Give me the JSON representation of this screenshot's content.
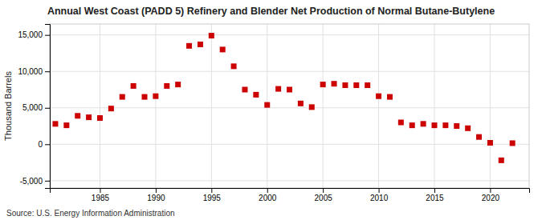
{
  "chart_data": {
    "type": "scatter",
    "title": "Annual West Coast (PADD 5) Refinery and Blender Net Production of Normal Butane-Butylene",
    "ylabel": "Thousand Barrels",
    "annotations": [
      "Source: U.S. Energy Information Administration"
    ],
    "color": "#cc0000",
    "marker": "square",
    "grid": true,
    "xlim": [
      1980.5,
      2023.5
    ],
    "ylim": [
      -6000,
      16500
    ],
    "xticks": [
      1985,
      1990,
      1995,
      2000,
      2005,
      2010,
      2015,
      2020
    ],
    "yticks": [
      {
        "value": -5000,
        "label": "-5,000"
      },
      0,
      {
        "value": 5000,
        "label": "5,000"
      },
      {
        "value": 10000,
        "label": "10,000"
      },
      {
        "value": 15000,
        "label": "15,000"
      }
    ],
    "x": [
      1981,
      1982,
      1983,
      1984,
      1985,
      1986,
      1987,
      1988,
      1989,
      1990,
      1991,
      1992,
      1993,
      1994,
      1995,
      1996,
      1997,
      1998,
      1999,
      2000,
      2001,
      2002,
      2003,
      2004,
      2005,
      2006,
      2007,
      2008,
      2009,
      2010,
      2011,
      2012,
      2013,
      2014,
      2015,
      2016,
      2017,
      2018,
      2019,
      2020,
      2021,
      2022
    ],
    "values": [
      2800,
      2600,
      3900,
      3700,
      3600,
      4900,
      6500,
      8000,
      6500,
      6600,
      8000,
      8200,
      13500,
      13700,
      14900,
      13000,
      10700,
      7500,
      6800,
      5400,
      7600,
      7500,
      5600,
      5100,
      8200,
      8300,
      8100,
      8100,
      8100,
      6600,
      6500,
      3000,
      2600,
      2800,
      2600,
      2600,
      2500,
      2200,
      1000,
      200,
      -2200,
      150
    ]
  }
}
